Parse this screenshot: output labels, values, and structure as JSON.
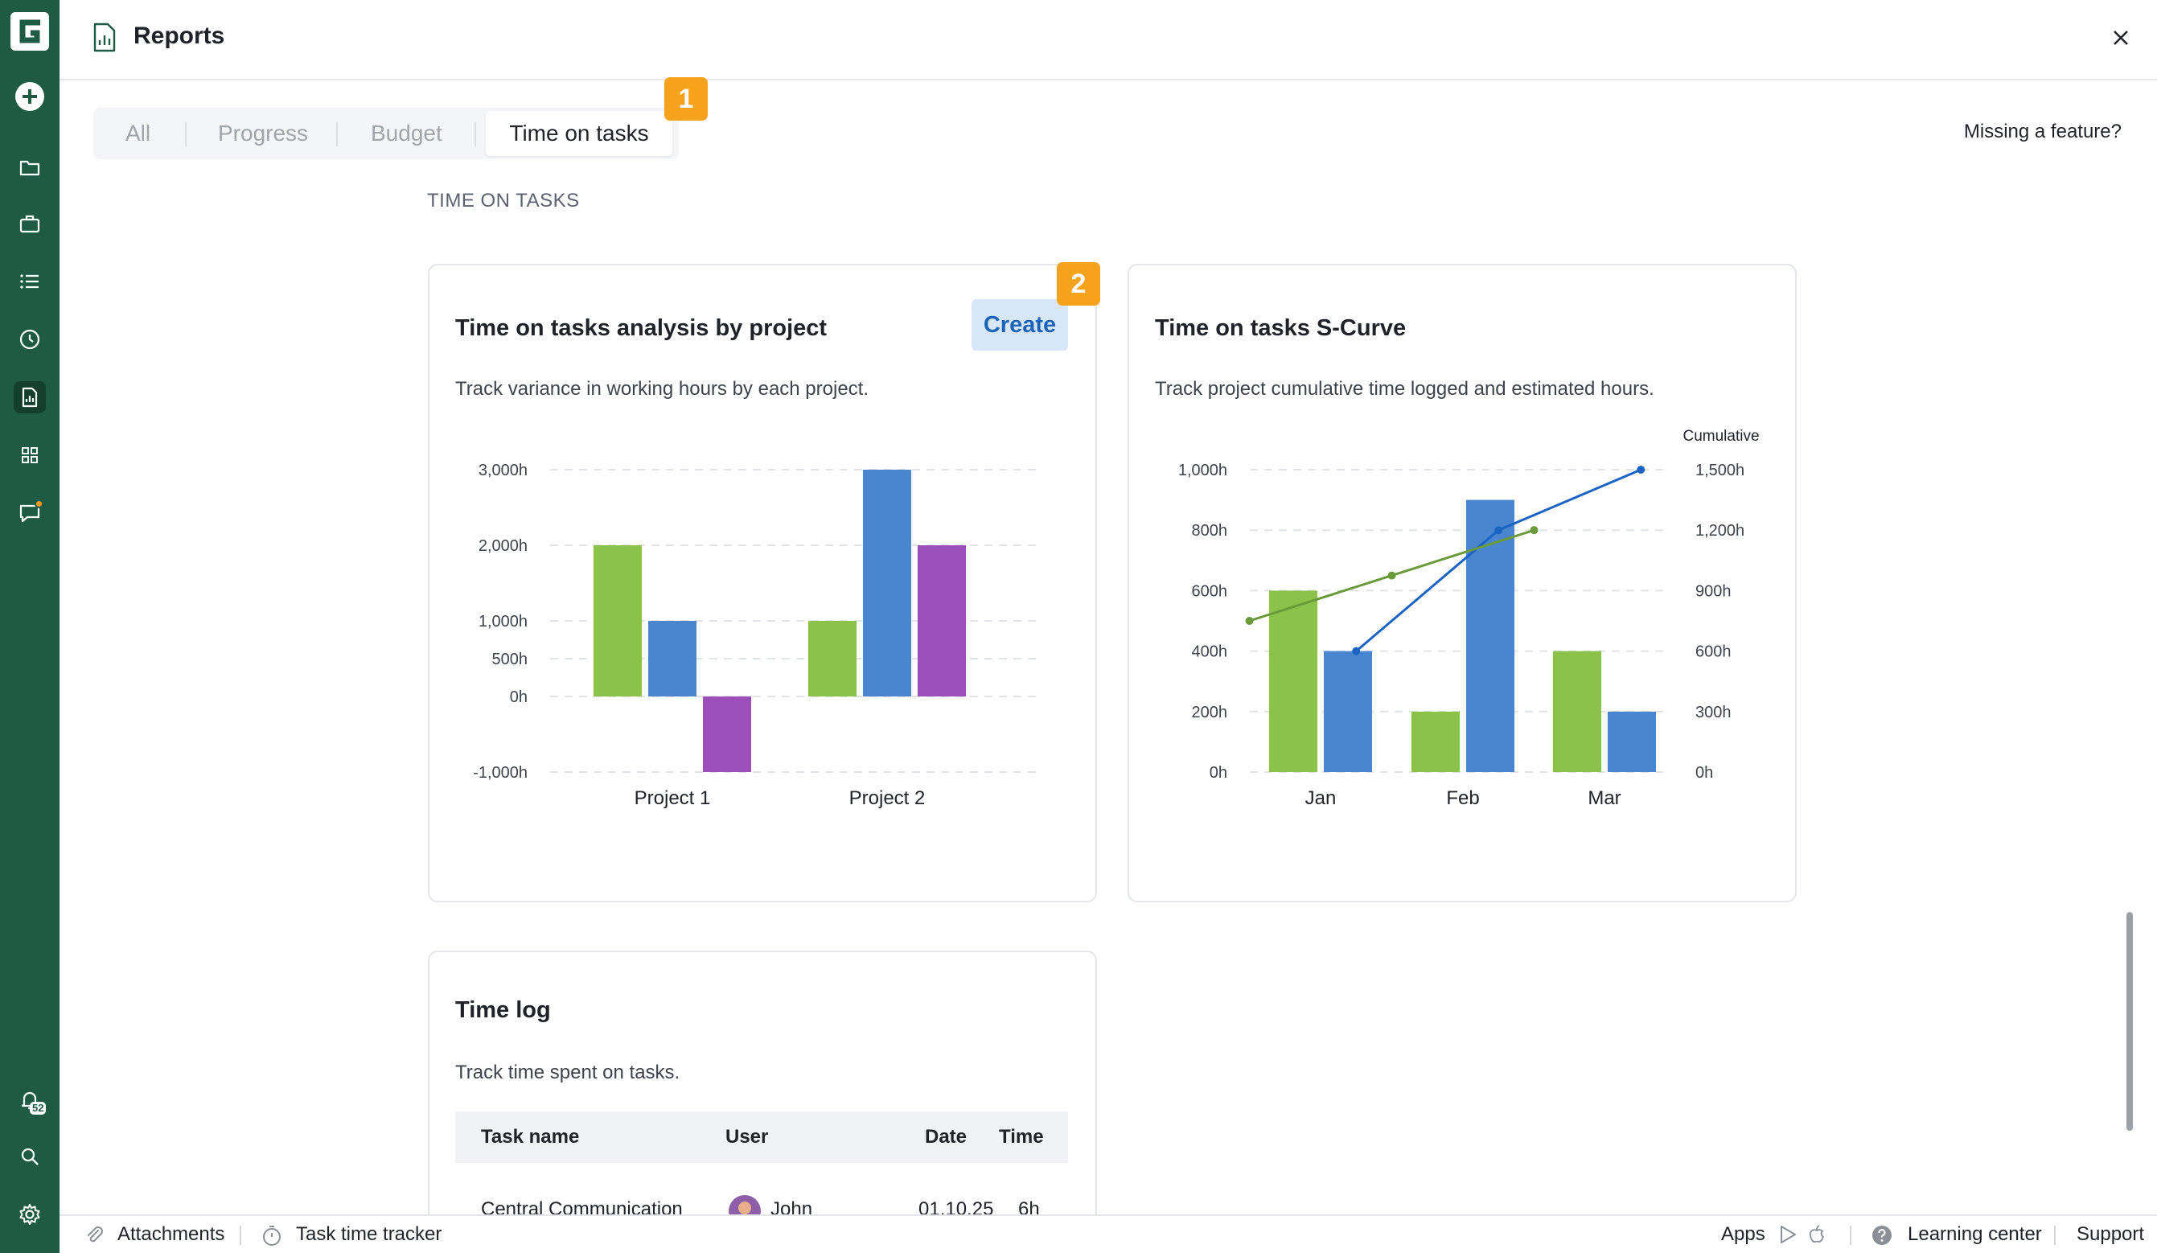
{
  "app": {
    "logo_letter": "G",
    "accent": "#1f5b44",
    "marker_color": "#f7a21b"
  },
  "rail": {
    "items": [
      "add-icon",
      "folder-icon",
      "briefcase-icon",
      "list-icon",
      "clock-icon",
      "reports-icon",
      "apps-grid-icon",
      "chat-icon"
    ],
    "bottom": [
      "bell-icon",
      "search-icon",
      "gear-icon"
    ],
    "notification_count": "52"
  },
  "header": {
    "title": "Reports"
  },
  "tabs": [
    {
      "label": "All"
    },
    {
      "label": "Progress"
    },
    {
      "label": "Budget"
    },
    {
      "label": "Time on tasks",
      "selected": true
    }
  ],
  "markers": {
    "tab": "1",
    "create": "2"
  },
  "missing_feature": "Missing a feature?",
  "section_title": "TIME ON TASKS",
  "cards": {
    "analysis": {
      "title": "Time on tasks analysis by project",
      "create_label": "Create",
      "description": "Track variance in working hours by each project."
    },
    "scurve": {
      "title": "Time on tasks S-Curve",
      "description": "Track project cumulative time logged and estimated hours."
    },
    "timelog": {
      "title": "Time log",
      "description": "Track time spent on tasks.",
      "columns": [
        "Task name",
        "User",
        "Date",
        "Time"
      ],
      "rows": [
        {
          "task": "Central Communication",
          "user": "John",
          "date": "01.10.25",
          "time": "6h"
        }
      ]
    }
  },
  "chart_data": [
    {
      "type": "bar",
      "categories": [
        "Project 1",
        "Project 2"
      ],
      "series": [
        {
          "values": [
            2000,
            1000
          ],
          "color": "#8bc34a"
        },
        {
          "values": [
            1000,
            3000
          ],
          "color": "#4a86cf"
        },
        {
          "values": [
            -1000,
            2000
          ],
          "color": "#9c4fb8"
        }
      ],
      "yticks": [
        "3,000h",
        "2,000h",
        "1,000h",
        "500h",
        "0h",
        "-1,000h"
      ],
      "ytick_values": [
        3000,
        2000,
        1000,
        500,
        0,
        -1000
      ],
      "grid": true
    },
    {
      "type": "bar",
      "categories": [
        "Jan",
        "Feb",
        "Mar"
      ],
      "series": [
        {
          "values": [
            600,
            200,
            400
          ],
          "color": "#8bc34a",
          "axis": "left"
        },
        {
          "values": [
            400,
            900,
            200
          ],
          "color": "#4a86cf",
          "axis": "left"
        }
      ],
      "lines": [
        {
          "x_positions": [
            0.75,
            1.75,
            2.75
          ],
          "values": [
            600,
            1200,
            1500
          ],
          "color": "#1b64c4",
          "axis": "right"
        },
        {
          "x_positions": [
            0,
            1,
            2
          ],
          "values": [
            750,
            975,
            1200
          ],
          "color": "#6a9a3a",
          "axis": "right"
        }
      ],
      "yticks_left": [
        "1,000h",
        "800h",
        "600h",
        "400h",
        "200h",
        "0h"
      ],
      "ytick_values_left": [
        1000,
        800,
        600,
        400,
        200,
        0
      ],
      "yticks_right": [
        "1,500h",
        "1,200h",
        "900h",
        "600h",
        "300h",
        "0h"
      ],
      "ytick_values_right": [
        1500,
        1200,
        900,
        600,
        300,
        0
      ],
      "right_axis_title": "Cumulative",
      "grid": true
    }
  ],
  "footer": {
    "attachments": "Attachments",
    "task_time_tracker": "Task time tracker",
    "apps": "Apps",
    "learning_center": "Learning center",
    "support": "Support"
  }
}
